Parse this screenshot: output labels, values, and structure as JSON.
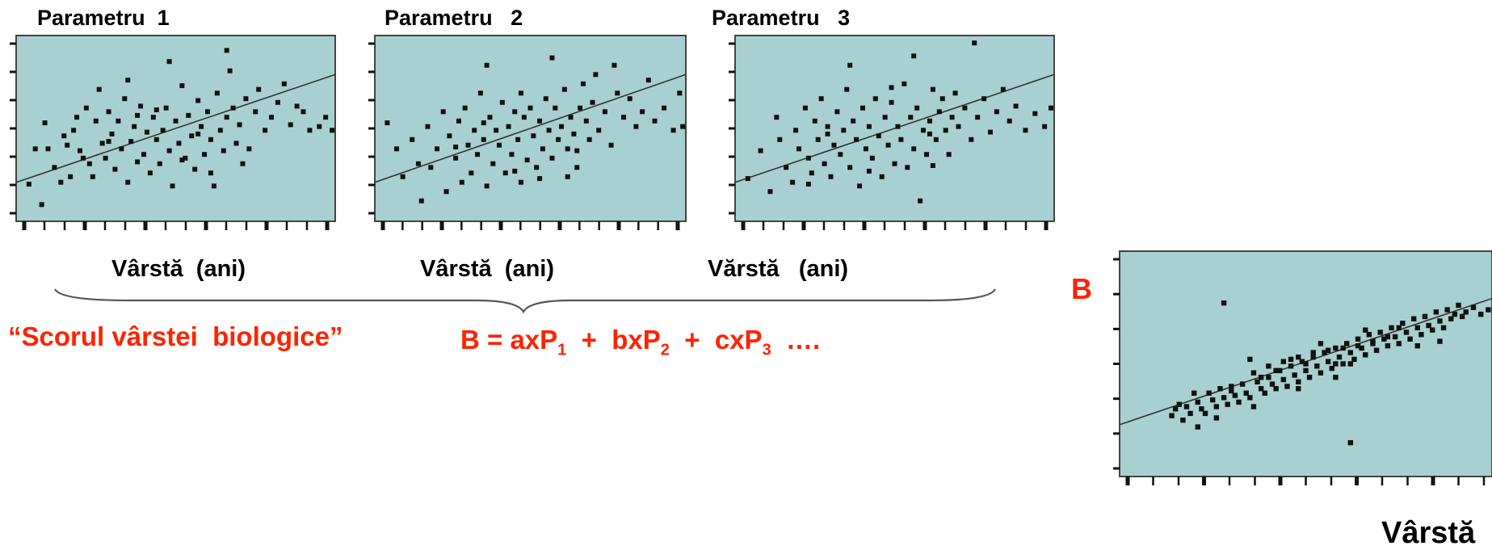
{
  "labels": {
    "score_open_quote": "“",
    "score_text": "Scorul vârstei  biologice",
    "score_close_quote": "”",
    "formula": {
      "lhs": "B = axP",
      "s1": "1",
      "mid1": "  +  bxP",
      "s2": "2",
      "mid2": "  +  cxP",
      "s3": "3",
      "tail": "  …."
    },
    "b_axis": "B",
    "age_axis": "Vârstă"
  },
  "colors": {
    "plot_bg": "#a8d0d0",
    "points": "#111111",
    "accent_red": "#ff2200"
  },
  "chart_data": [
    {
      "type": "scatter",
      "title": "Parametru  1",
      "xlabel": "Vârstă  (ani)",
      "ylabel": "",
      "xlim": [
        0,
        100
      ],
      "ylim": [
        0,
        100
      ],
      "fit_line": [
        [
          0,
          21
        ],
        [
          100,
          79
        ]
      ],
      "points": [
        [
          4,
          20
        ],
        [
          6,
          39
        ],
        [
          8,
          9
        ],
        [
          9,
          53
        ],
        [
          10,
          39
        ],
        [
          12,
          29
        ],
        [
          14,
          21
        ],
        [
          15,
          46
        ],
        [
          16,
          41
        ],
        [
          17,
          24
        ],
        [
          18,
          49
        ],
        [
          19,
          56
        ],
        [
          20,
          38
        ],
        [
          21,
          34
        ],
        [
          22,
          61
        ],
        [
          23,
          31
        ],
        [
          24,
          24
        ],
        [
          25,
          54
        ],
        [
          26,
          71
        ],
        [
          27,
          42
        ],
        [
          28,
          34
        ],
        [
          29,
          59
        ],
        [
          30,
          47
        ],
        [
          31,
          28
        ],
        [
          32,
          54
        ],
        [
          33,
          39
        ],
        [
          34,
          66
        ],
        [
          35,
          21
        ],
        [
          36,
          43
        ],
        [
          37,
          51
        ],
        [
          38,
          32
        ],
        [
          39,
          62
        ],
        [
          40,
          36
        ],
        [
          41,
          48
        ],
        [
          42,
          26
        ],
        [
          43,
          56
        ],
        [
          44,
          44
        ],
        [
          45,
          31
        ],
        [
          46,
          49
        ],
        [
          47,
          61
        ],
        [
          48,
          38
        ],
        [
          49,
          19
        ],
        [
          50,
          54
        ],
        [
          51,
          42
        ],
        [
          52,
          73
        ],
        [
          53,
          34
        ],
        [
          54,
          57
        ],
        [
          55,
          46
        ],
        [
          56,
          28
        ],
        [
          57,
          65
        ],
        [
          58,
          51
        ],
        [
          59,
          36
        ],
        [
          60,
          59
        ],
        [
          61,
          44
        ],
        [
          62,
          19
        ],
        [
          63,
          69
        ],
        [
          64,
          49
        ],
        [
          65,
          38
        ],
        [
          66,
          56
        ],
        [
          67,
          81
        ],
        [
          68,
          61
        ],
        [
          69,
          42
        ],
        [
          70,
          52
        ],
        [
          72,
          66
        ],
        [
          73,
          39
        ],
        [
          75,
          59
        ],
        [
          76,
          71
        ],
        [
          78,
          49
        ],
        [
          80,
          56
        ],
        [
          82,
          64
        ],
        [
          84,
          74
        ],
        [
          86,
          52
        ],
        [
          88,
          62
        ],
        [
          90,
          59
        ],
        [
          92,
          49
        ],
        [
          95,
          51
        ],
        [
          97,
          56
        ],
        [
          99,
          49
        ],
        [
          35,
          76
        ],
        [
          48,
          86
        ],
        [
          66,
          92
        ],
        [
          44,
          60
        ],
        [
          57,
          47
        ],
        [
          38,
          57
        ],
        [
          52,
          33
        ],
        [
          61,
          26
        ],
        [
          29,
          43
        ],
        [
          71,
          31
        ]
      ]
    },
    {
      "type": "scatter",
      "title": "Parametru   2",
      "xlabel": "Vârstă  (ani)",
      "ylabel": "",
      "xlim": [
        0,
        100
      ],
      "ylim": [
        0,
        100
      ],
      "fit_line": [
        [
          0,
          21
        ],
        [
          100,
          79
        ]
      ],
      "points": [
        [
          4,
          53
        ],
        [
          7,
          39
        ],
        [
          9,
          24
        ],
        [
          12,
          44
        ],
        [
          14,
          31
        ],
        [
          15,
          11
        ],
        [
          17,
          51
        ],
        [
          18,
          29
        ],
        [
          20,
          39
        ],
        [
          22,
          59
        ],
        [
          23,
          16
        ],
        [
          24,
          46
        ],
        [
          26,
          34
        ],
        [
          27,
          54
        ],
        [
          28,
          21
        ],
        [
          29,
          61
        ],
        [
          30,
          41
        ],
        [
          31,
          26
        ],
        [
          32,
          49
        ],
        [
          33,
          36
        ],
        [
          34,
          69
        ],
        [
          35,
          44
        ],
        [
          36,
          19
        ],
        [
          37,
          56
        ],
        [
          38,
          31
        ],
        [
          39,
          49
        ],
        [
          40,
          41
        ],
        [
          41,
          64
        ],
        [
          42,
          26
        ],
        [
          43,
          51
        ],
        [
          44,
          36
        ],
        [
          45,
          59
        ],
        [
          46,
          44
        ],
        [
          47,
          21
        ],
        [
          48,
          56
        ],
        [
          49,
          33
        ],
        [
          50,
          61
        ],
        [
          51,
          46
        ],
        [
          52,
          29
        ],
        [
          53,
          54
        ],
        [
          54,
          39
        ],
        [
          55,
          66
        ],
        [
          56,
          49
        ],
        [
          57,
          34
        ],
        [
          58,
          61
        ],
        [
          59,
          44
        ],
        [
          60,
          51
        ],
        [
          61,
          71
        ],
        [
          62,
          39
        ],
        [
          63,
          56
        ],
        [
          64,
          47
        ],
        [
          65,
          29
        ],
        [
          66,
          61
        ],
        [
          67,
          74
        ],
        [
          68,
          54
        ],
        [
          69,
          44
        ],
        [
          70,
          64
        ],
        [
          71,
          79
        ],
        [
          72,
          49
        ],
        [
          74,
          59
        ],
        [
          76,
          41
        ],
        [
          78,
          69
        ],
        [
          80,
          56
        ],
        [
          82,
          66
        ],
        [
          84,
          51
        ],
        [
          86,
          59
        ],
        [
          88,
          76
        ],
        [
          90,
          54
        ],
        [
          93,
          61
        ],
        [
          96,
          49
        ],
        [
          98,
          69
        ],
        [
          99,
          51
        ],
        [
          36,
          84
        ],
        [
          57,
          88
        ],
        [
          77,
          84
        ],
        [
          47,
          69
        ],
        [
          62,
          24
        ],
        [
          45,
          27
        ],
        [
          35,
          53
        ],
        [
          26,
          40
        ],
        [
          53,
          23
        ],
        [
          65,
          38
        ]
      ]
    },
    {
      "type": "scatter",
      "title": "Parametru   3",
      "xlabel": "Vărstă   (ani)",
      "ylabel": "",
      "xlim": [
        0,
        100
      ],
      "ylim": [
        0,
        100
      ],
      "fit_line": [
        [
          0,
          21
        ],
        [
          100,
          79
        ]
      ],
      "points": [
        [
          4,
          23
        ],
        [
          8,
          38
        ],
        [
          11,
          16
        ],
        [
          13,
          56
        ],
        [
          14,
          44
        ],
        [
          16,
          29
        ],
        [
          18,
          21
        ],
        [
          19,
          49
        ],
        [
          20,
          39
        ],
        [
          22,
          61
        ],
        [
          23,
          34
        ],
        [
          24,
          26
        ],
        [
          25,
          54
        ],
        [
          26,
          44
        ],
        [
          27,
          66
        ],
        [
          28,
          31
        ],
        [
          29,
          51
        ],
        [
          30,
          24
        ],
        [
          31,
          41
        ],
        [
          32,
          59
        ],
        [
          33,
          36
        ],
        [
          34,
          49
        ],
        [
          35,
          71
        ],
        [
          36,
          29
        ],
        [
          37,
          54
        ],
        [
          38,
          44
        ],
        [
          39,
          19
        ],
        [
          40,
          61
        ],
        [
          41,
          39
        ],
        [
          42,
          51
        ],
        [
          43,
          34
        ],
        [
          44,
          66
        ],
        [
          45,
          46
        ],
        [
          46,
          24
        ],
        [
          47,
          56
        ],
        [
          48,
          41
        ],
        [
          49,
          64
        ],
        [
          50,
          31
        ],
        [
          51,
          51
        ],
        [
          52,
          44
        ],
        [
          53,
          74
        ],
        [
          54,
          29
        ],
        [
          55,
          56
        ],
        [
          56,
          39
        ],
        [
          57,
          61
        ],
        [
          58,
          11
        ],
        [
          59,
          49
        ],
        [
          60,
          36
        ],
        [
          61,
          54
        ],
        [
          62,
          71
        ],
        [
          63,
          44
        ],
        [
          64,
          59
        ],
        [
          65,
          66
        ],
        [
          66,
          49
        ],
        [
          67,
          36
        ],
        [
          68,
          56
        ],
        [
          69,
          69
        ],
        [
          70,
          51
        ],
        [
          72,
          61
        ],
        [
          74,
          44
        ],
        [
          76,
          56
        ],
        [
          78,
          66
        ],
        [
          80,
          48
        ],
        [
          82,
          59
        ],
        [
          84,
          71
        ],
        [
          86,
          54
        ],
        [
          88,
          62
        ],
        [
          91,
          49
        ],
        [
          94,
          58
        ],
        [
          97,
          51
        ],
        [
          99,
          61
        ],
        [
          36,
          84
        ],
        [
          56,
          89
        ],
        [
          75,
          96
        ],
        [
          49,
          72
        ],
        [
          29,
          47
        ],
        [
          42,
          27
        ],
        [
          62,
          30
        ],
        [
          23,
          20
        ],
        [
          61,
          47
        ]
      ]
    },
    {
      "type": "scatter",
      "title": "",
      "xlabel": "Vârstă",
      "ylabel": "B",
      "xlim": [
        0,
        100
      ],
      "ylim": [
        0,
        100
      ],
      "fit_line": [
        [
          0,
          23
        ],
        [
          100,
          79
        ]
      ],
      "points": [
        [
          14,
          27
        ],
        [
          15,
          30
        ],
        [
          16,
          32
        ],
        [
          17,
          25
        ],
        [
          18,
          31
        ],
        [
          19,
          28
        ],
        [
          20,
          37
        ],
        [
          21,
          33
        ],
        [
          22,
          30
        ],
        [
          23,
          28
        ],
        [
          24,
          37
        ],
        [
          25,
          34
        ],
        [
          26,
          31
        ],
        [
          27,
          39
        ],
        [
          28,
          35
        ],
        [
          29,
          32
        ],
        [
          30,
          38
        ],
        [
          31,
          36
        ],
        [
          32,
          33
        ],
        [
          33,
          41
        ],
        [
          34,
          37
        ],
        [
          35,
          35
        ],
        [
          36,
          46
        ],
        [
          37,
          42
        ],
        [
          38,
          39
        ],
        [
          39,
          37
        ],
        [
          40,
          44
        ],
        [
          41,
          41
        ],
        [
          42,
          39
        ],
        [
          43,
          47
        ],
        [
          44,
          43
        ],
        [
          45,
          40
        ],
        [
          46,
          49
        ],
        [
          47,
          45
        ],
        [
          48,
          42
        ],
        [
          49,
          51
        ],
        [
          50,
          47
        ],
        [
          51,
          44
        ],
        [
          52,
          53
        ],
        [
          53,
          49
        ],
        [
          54,
          46
        ],
        [
          55,
          55
        ],
        [
          56,
          51
        ],
        [
          57,
          48
        ],
        [
          58,
          57
        ],
        [
          59,
          53
        ],
        [
          60,
          50
        ],
        [
          61,
          59
        ],
        [
          62,
          55
        ],
        [
          63,
          52
        ],
        [
          64,
          61
        ],
        [
          65,
          57
        ],
        [
          66,
          54
        ],
        [
          67,
          63
        ],
        [
          68,
          59
        ],
        [
          69,
          56
        ],
        [
          70,
          64
        ],
        [
          71,
          61
        ],
        [
          72,
          58
        ],
        [
          73,
          66
        ],
        [
          74,
          62
        ],
        [
          75,
          59
        ],
        [
          76,
          68
        ],
        [
          77,
          64
        ],
        [
          78,
          61
        ],
        [
          79,
          70
        ],
        [
          80,
          66
        ],
        [
          81,
          63
        ],
        [
          82,
          71
        ],
        [
          83,
          67
        ],
        [
          84,
          65
        ],
        [
          85,
          73
        ],
        [
          86,
          69
        ],
        [
          87,
          66
        ],
        [
          88,
          74
        ],
        [
          89,
          70
        ],
        [
          90,
          72
        ],
        [
          91,
          76
        ],
        [
          92,
          71
        ],
        [
          93,
          73
        ],
        [
          95,
          75
        ],
        [
          97,
          72
        ],
        [
          99,
          74
        ],
        [
          35,
          52
        ],
        [
          40,
          49
        ],
        [
          44,
          51
        ],
        [
          48,
          53
        ],
        [
          52,
          55
        ],
        [
          56,
          56
        ],
        [
          60,
          57
        ],
        [
          64,
          58
        ],
        [
          68,
          60
        ],
        [
          72,
          62
        ],
        [
          50,
          50
        ],
        [
          46,
          52
        ],
        [
          58,
          50
        ],
        [
          62,
          50
        ],
        [
          66,
          65
        ],
        [
          54,
          59
        ],
        [
          42,
          47
        ],
        [
          38,
          44
        ],
        [
          30,
          40
        ],
        [
          75,
          66
        ],
        [
          80,
          58
        ],
        [
          86,
          60
        ],
        [
          58,
          44
        ],
        [
          48,
          39
        ],
        [
          36,
          31
        ],
        [
          26,
          26
        ],
        [
          21,
          22
        ],
        [
          28,
          77
        ],
        [
          62,
          15
        ]
      ]
    }
  ]
}
